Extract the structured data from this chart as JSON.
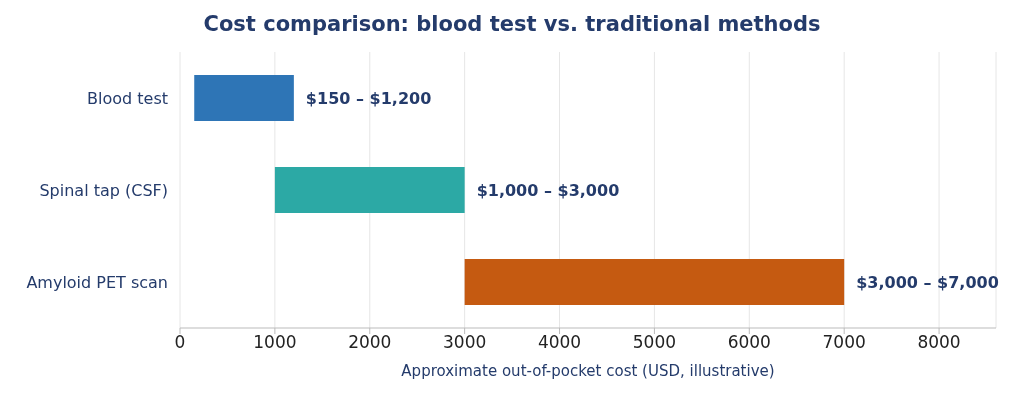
{
  "chart_data": {
    "type": "bar",
    "orientation": "horizontal",
    "title": "Cost comparison: blood test vs. traditional methods",
    "xlabel": "Approximate out-of-pocket cost (USD, illustrative)",
    "categories": [
      "Blood test",
      "Spinal tap (CSF)",
      "Amyloid PET scan"
    ],
    "base": [
      150,
      1000,
      3000
    ],
    "values": [
      1050,
      2000,
      4000
    ],
    "colors": [
      "#2e75b6",
      "#2ca9a5",
      "#c55a11"
    ],
    "annotations": [
      {
        "text": "$150 – $1,200",
        "x": 1200,
        "y": "Blood test"
      },
      {
        "text": "$1,000 – $3,000",
        "x": 3000,
        "y": "Spinal tap (CSF)"
      },
      {
        "text": "$3,000 – $7,000",
        "x": 7000,
        "y": "Amyloid PET scan"
      }
    ],
    "xlim": [
      0,
      8600
    ],
    "xticks": [
      0,
      1000,
      2000,
      3000,
      4000,
      5000,
      6000,
      7000,
      8000
    ],
    "grid": "x"
  }
}
